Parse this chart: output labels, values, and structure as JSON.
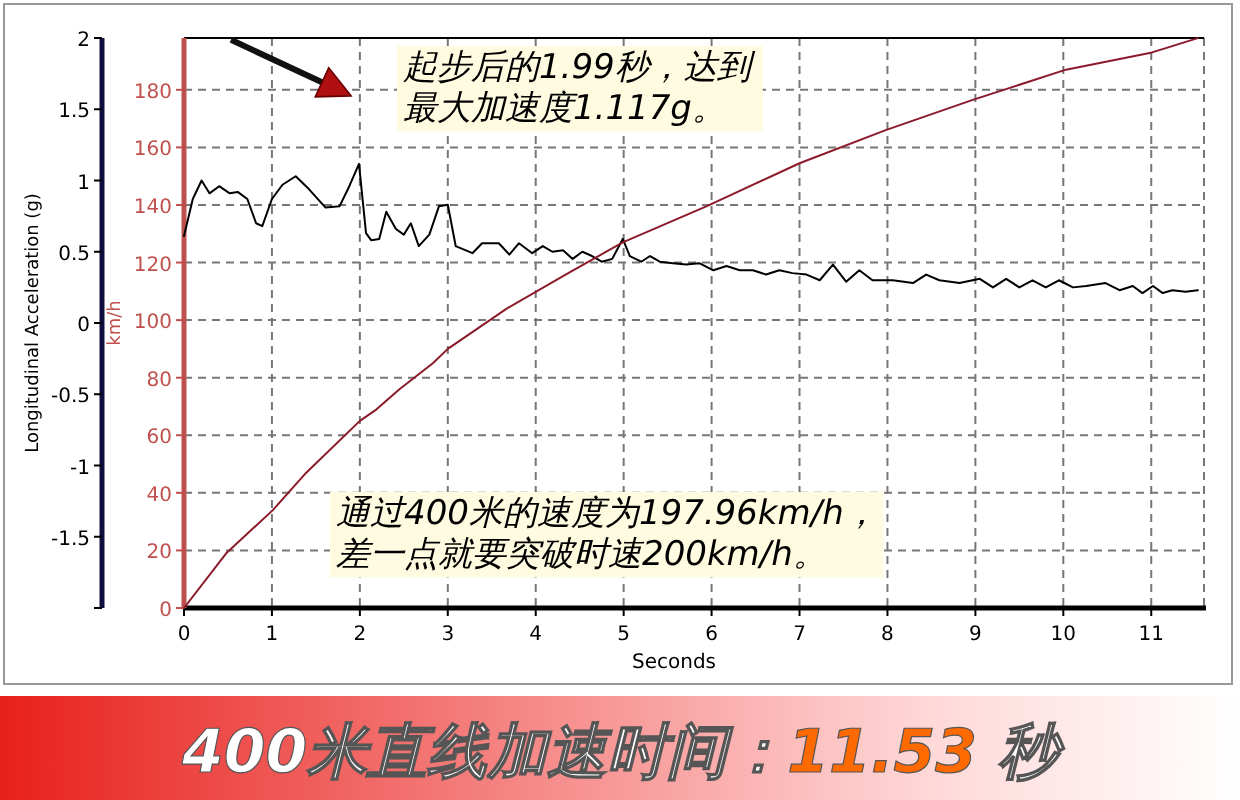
{
  "chart_data": {
    "type": "line",
    "title": "400米直线加速时间：11.53 秒",
    "xlabel": "Seconds",
    "ylabel": "Longitudinal Acceleration (g)",
    "y2label": "km/h",
    "xlim": [
      0,
      11.6
    ],
    "xticks": [
      0,
      1,
      2,
      3,
      4,
      5,
      6,
      7,
      8,
      9,
      10,
      11
    ],
    "ylim": [
      -2,
      2
    ],
    "yticks": [
      {
        "value": -2,
        "label": null
      },
      -1.5,
      -1,
      -0.5,
      0,
      0.5,
      1,
      1.5,
      2
    ],
    "y2lim": [
      0,
      198
    ],
    "y2ticks": [
      0,
      20,
      40,
      60,
      80,
      100,
      120,
      140,
      160,
      180
    ],
    "grid": true,
    "marker": "none",
    "line_style": "solid",
    "series": [
      {
        "color": "#000000",
        "x": [
          0,
          0.1,
          0.2,
          0.29,
          0.4,
          0.52,
          0.61,
          0.72,
          0.82,
          0.89,
          1.0,
          1.12,
          1.27,
          1.42,
          1.61,
          1.77,
          1.88,
          1.99,
          2.07,
          2.13,
          2.22,
          2.3,
          2.41,
          2.5,
          2.58,
          2.67,
          2.79,
          2.9,
          3.0,
          3.09,
          3.28,
          3.39,
          3.58,
          3.7,
          3.81,
          3.96,
          4.08,
          4.19,
          4.31,
          4.42,
          4.53,
          4.64,
          4.75,
          4.87,
          4.99,
          5.07,
          5.2,
          5.3,
          5.41,
          5.56,
          5.71,
          5.86,
          6.02,
          6.17,
          6.32,
          6.47,
          6.62,
          6.77,
          6.92,
          7.08,
          7.23,
          7.38,
          7.53,
          7.68,
          7.83,
          8.06,
          8.29,
          8.44,
          8.59,
          8.82,
          9.05,
          9.2,
          9.35,
          9.5,
          9.65,
          9.8,
          9.95,
          10.11,
          10.26,
          10.48,
          10.64,
          10.79,
          10.9,
          11.02,
          11.13,
          11.24,
          11.39,
          11.53
        ],
        "values": [
          0.61,
          0.87,
          1.0,
          0.91,
          0.96,
          0.91,
          0.92,
          0.87,
          0.7,
          0.68,
          0.87,
          0.97,
          1.03,
          0.94,
          0.81,
          0.82,
          0.96,
          1.117,
          0.63,
          0.58,
          0.59,
          0.78,
          0.66,
          0.62,
          0.7,
          0.54,
          0.62,
          0.82,
          0.83,
          0.54,
          0.49,
          0.56,
          0.56,
          0.48,
          0.56,
          0.49,
          0.54,
          0.5,
          0.51,
          0.45,
          0.5,
          0.47,
          0.43,
          0.45,
          0.59,
          0.47,
          0.43,
          0.47,
          0.43,
          0.42,
          0.41,
          0.42,
          0.37,
          0.4,
          0.37,
          0.37,
          0.34,
          0.37,
          0.35,
          0.34,
          0.3,
          0.41,
          0.29,
          0.37,
          0.3,
          0.3,
          0.28,
          0.34,
          0.3,
          0.28,
          0.31,
          0.25,
          0.31,
          0.25,
          0.3,
          0.25,
          0.3,
          0.25,
          0.26,
          0.28,
          0.23,
          0.26,
          0.21,
          0.26,
          0.21,
          0.23,
          0.22,
          0.23
        ]
      },
      {
        "color": "#8b1a2b",
        "axis": "y2",
        "x": [
          0,
          0.48,
          1.01,
          1.39,
          2.0,
          2.19,
          2.45,
          2.83,
          3.0,
          3.67,
          4.35,
          4.99,
          5.94,
          7.0,
          7.98,
          8.97,
          10.03,
          11.01,
          11.53
        ],
        "values": [
          0,
          19,
          34,
          47,
          65,
          69,
          76,
          85,
          90,
          104,
          116,
          127,
          139.5,
          154.5,
          166,
          176.5,
          187,
          193,
          197.96
        ]
      }
    ],
    "annotations": [
      {
        "text": "起步后的1.99秒，达到最大加速度1.117g。",
        "x": 1.99,
        "y": 1.117
      },
      "通过400米的速度为197.96km/h，差一点就要突破时速200km/h。"
    ]
  }
}
